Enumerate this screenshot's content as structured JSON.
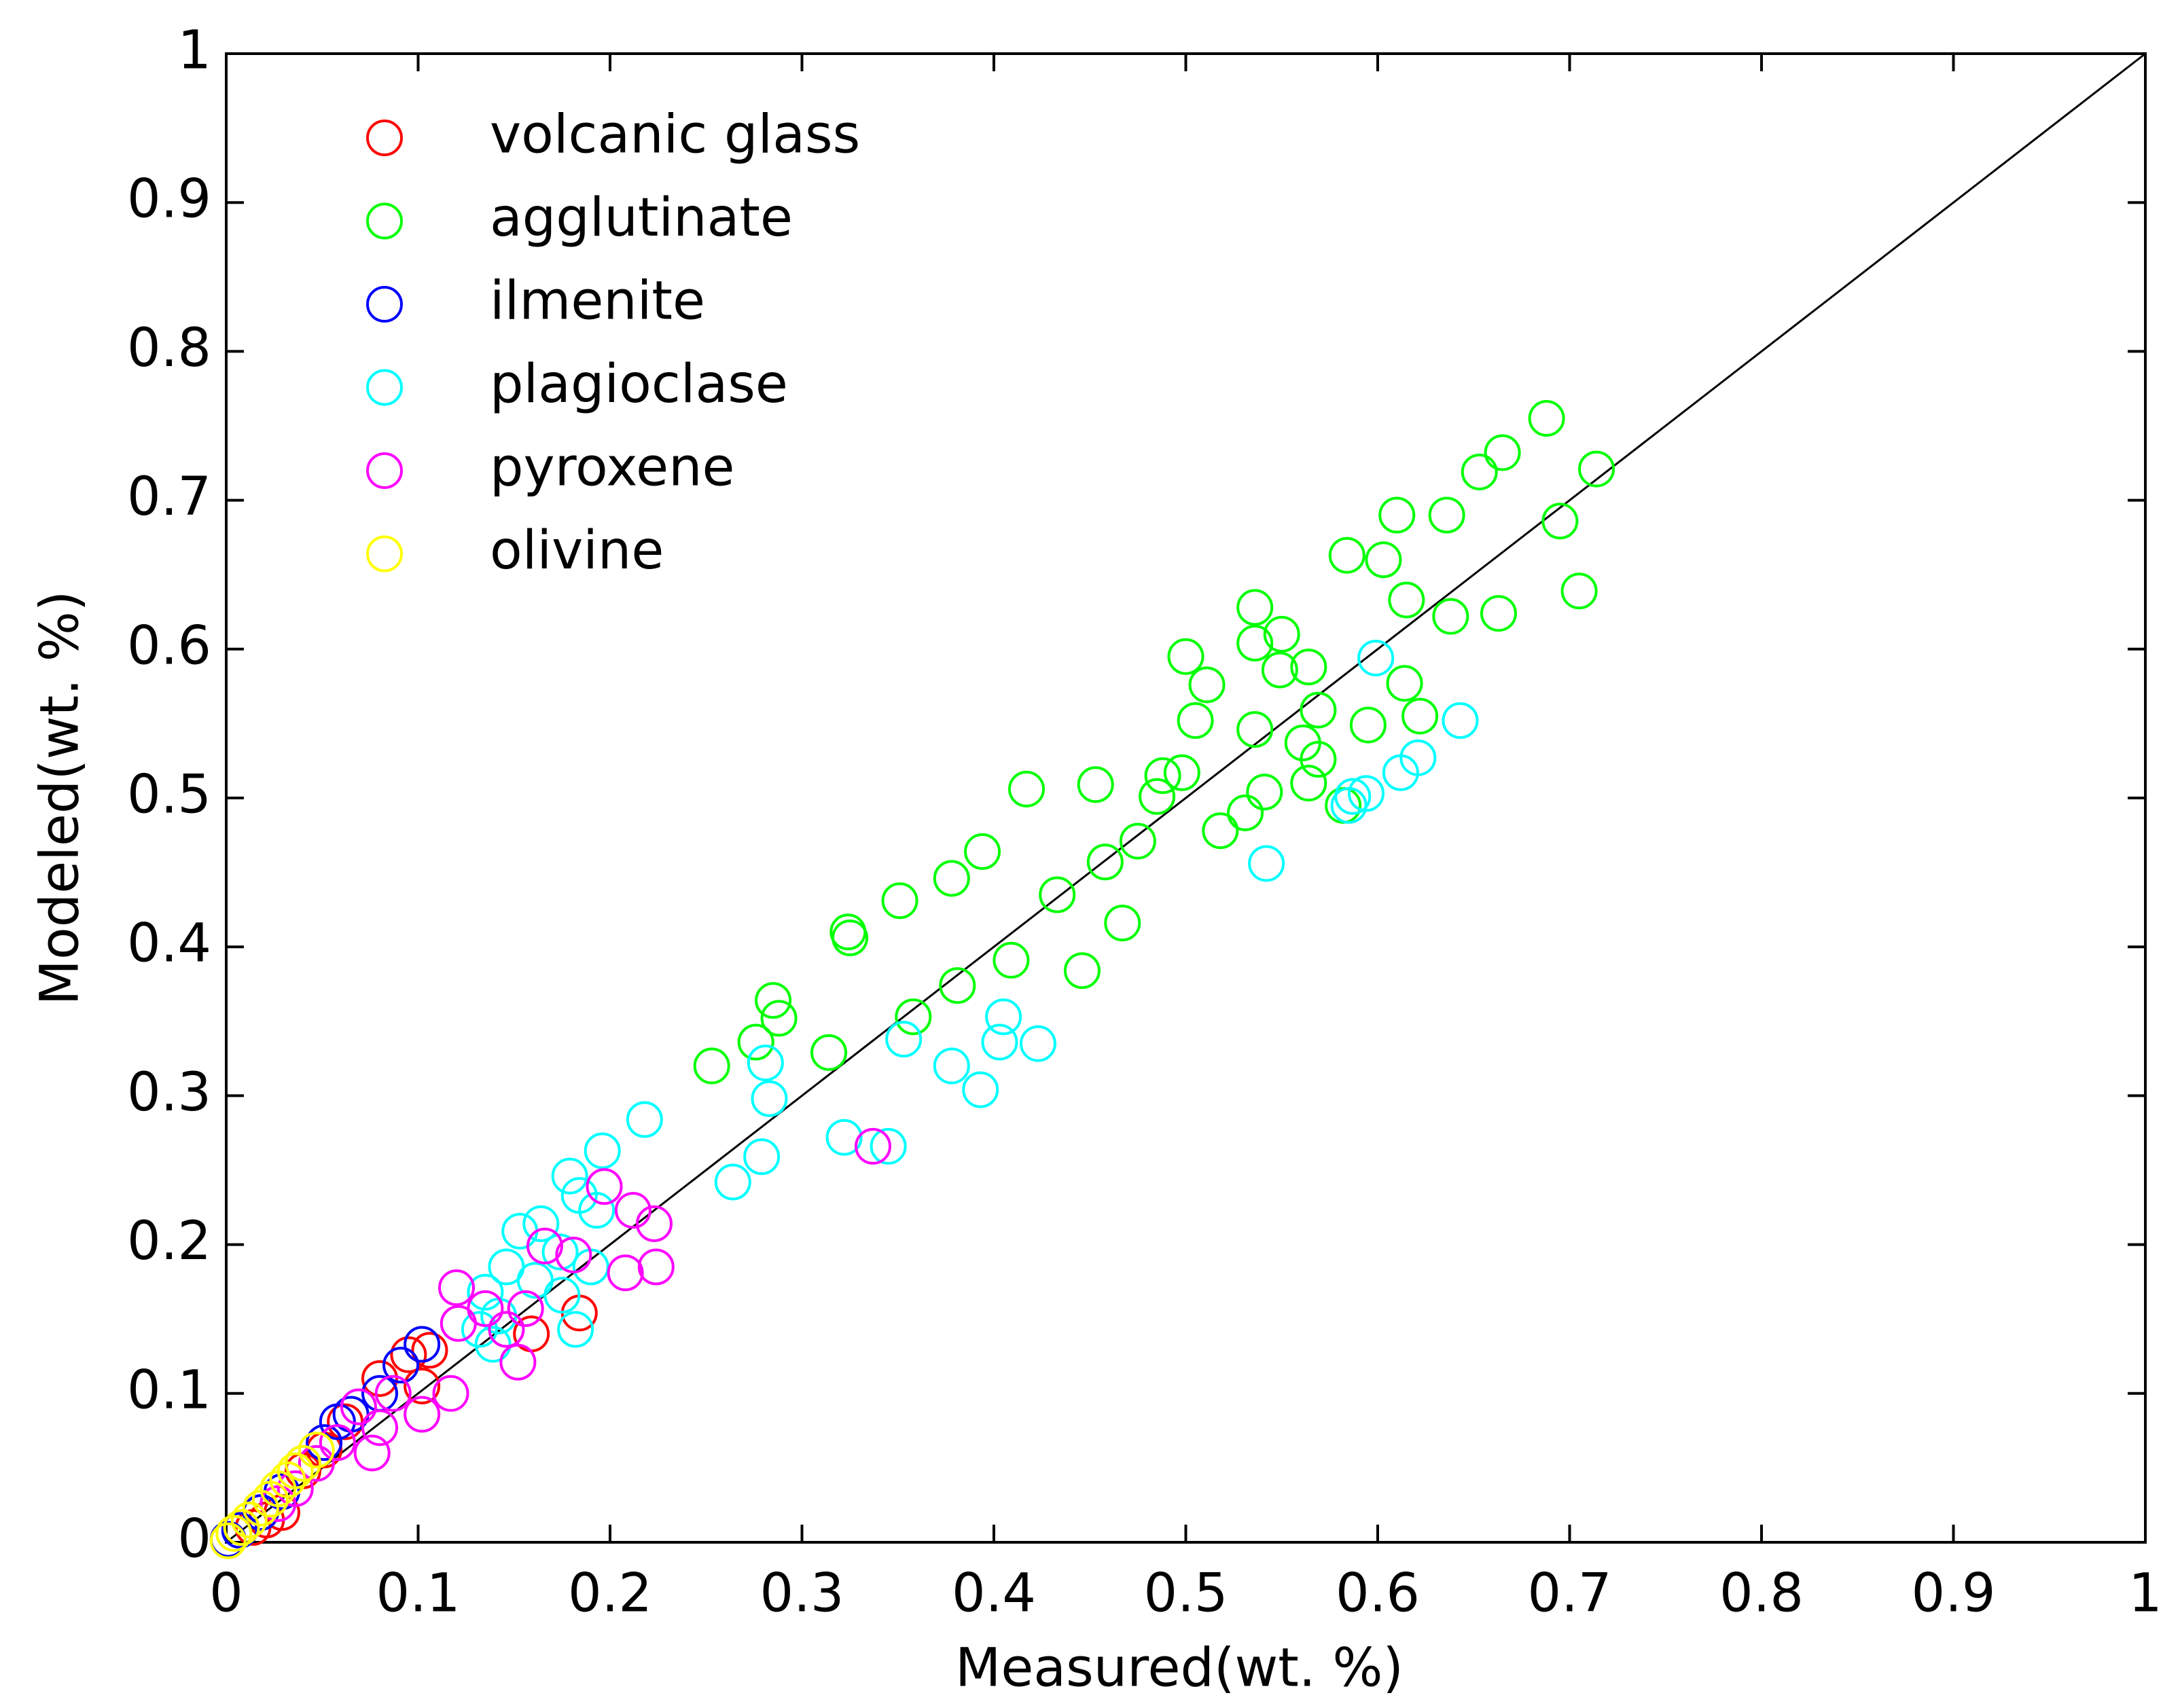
{
  "chart_data": {
    "type": "scatter",
    "x_label": "Measured(wt. %)",
    "y_label": "Modeled(wt. %)",
    "xlim": [
      0,
      1
    ],
    "ylim": [
      0,
      1
    ],
    "xticks": [
      0,
      0.1,
      0.2,
      0.3,
      0.4,
      0.5,
      0.6,
      0.7,
      0.8,
      0.9,
      1
    ],
    "yticks": [
      0,
      0.1,
      0.2,
      0.3,
      0.4,
      0.5,
      0.6,
      0.7,
      0.8,
      0.9,
      1
    ],
    "legend": "upper-left",
    "grid": false,
    "series": [
      {
        "name": "volcanic glass",
        "color": "#ff0000",
        "x": [
          0.184,
          0.159,
          0.095,
          0.106,
          0.102,
          0.08,
          0.062,
          0.051,
          0.04,
          0.029,
          0.021,
          0.014
        ],
        "values": [
          0.154,
          0.14,
          0.126,
          0.129,
          0.105,
          0.11,
          0.081,
          0.062,
          0.048,
          0.02,
          0.015,
          0.01
        ]
      },
      {
        "name": "agglutinate",
        "color": "#00ff00",
        "x": [
          0.714,
          0.688,
          0.665,
          0.653,
          0.695,
          0.705,
          0.61,
          0.636,
          0.584,
          0.603,
          0.615,
          0.638,
          0.663,
          0.536,
          0.536,
          0.55,
          0.564,
          0.549,
          0.5,
          0.511,
          0.505,
          0.536,
          0.569,
          0.614,
          0.622,
          0.595,
          0.561,
          0.569,
          0.564,
          0.541,
          0.498,
          0.488,
          0.485,
          0.518,
          0.531,
          0.582,
          0.453,
          0.417,
          0.475,
          0.458,
          0.394,
          0.378,
          0.433,
          0.467,
          0.351,
          0.324,
          0.325,
          0.409,
          0.446,
          0.381,
          0.358,
          0.285,
          0.288,
          0.276,
          0.314,
          0.253
        ],
        "values": [
          0.721,
          0.755,
          0.732,
          0.719,
          0.686,
          0.639,
          0.69,
          0.69,
          0.663,
          0.66,
          0.633,
          0.622,
          0.624,
          0.628,
          0.604,
          0.61,
          0.588,
          0.586,
          0.595,
          0.576,
          0.552,
          0.546,
          0.559,
          0.577,
          0.555,
          0.549,
          0.537,
          0.526,
          0.51,
          0.504,
          0.517,
          0.515,
          0.501,
          0.478,
          0.49,
          0.495,
          0.509,
          0.506,
          0.471,
          0.457,
          0.464,
          0.446,
          0.435,
          0.416,
          0.431,
          0.41,
          0.406,
          0.391,
          0.384,
          0.374,
          0.353,
          0.364,
          0.352,
          0.336,
          0.329,
          0.32
        ]
      },
      {
        "name": "ilmenite",
        "color": "#0000ff",
        "x": [
          0.102,
          0.091,
          0.08,
          0.065,
          0.058,
          0.051,
          0.04,
          0.029,
          0.018,
          0.007,
          0.001
        ],
        "values": [
          0.133,
          0.119,
          0.1,
          0.086,
          0.081,
          0.067,
          0.053,
          0.034,
          0.02,
          0.008,
          0.002
        ]
      },
      {
        "name": "plagioclase",
        "color": "#00ffff",
        "x": [
          0.599,
          0.643,
          0.621,
          0.612,
          0.594,
          0.587,
          0.585,
          0.542,
          0.405,
          0.403,
          0.423,
          0.353,
          0.378,
          0.393,
          0.281,
          0.283,
          0.322,
          0.345,
          0.279,
          0.264,
          0.218,
          0.196,
          0.179,
          0.184,
          0.193,
          0.164,
          0.153,
          0.174,
          0.19,
          0.146,
          0.161,
          0.175,
          0.135,
          0.142,
          0.182,
          0.132,
          0.139
        ],
        "values": [
          0.594,
          0.552,
          0.527,
          0.517,
          0.503,
          0.501,
          0.495,
          0.456,
          0.353,
          0.336,
          0.335,
          0.338,
          0.32,
          0.304,
          0.322,
          0.298,
          0.272,
          0.266,
          0.259,
          0.242,
          0.284,
          0.263,
          0.246,
          0.233,
          0.223,
          0.214,
          0.209,
          0.195,
          0.185,
          0.185,
          0.176,
          0.166,
          0.168,
          0.152,
          0.143,
          0.143,
          0.133
        ]
      },
      {
        "name": "pyroxene",
        "color": "#ff00ff",
        "x": [
          0.337,
          0.197,
          0.212,
          0.223,
          0.224,
          0.208,
          0.181,
          0.166,
          0.12,
          0.135,
          0.156,
          0.146,
          0.121,
          0.152,
          0.117,
          0.102,
          0.087,
          0.08,
          0.069,
          0.076,
          0.058,
          0.047,
          0.036,
          0.027
        ],
        "values": [
          0.266,
          0.239,
          0.223,
          0.214,
          0.185,
          0.181,
          0.193,
          0.199,
          0.171,
          0.157,
          0.157,
          0.143,
          0.147,
          0.121,
          0.1,
          0.086,
          0.1,
          0.077,
          0.091,
          0.06,
          0.067,
          0.053,
          0.036,
          0.026
        ]
      },
      {
        "name": "olivine",
        "color": "#ffff00",
        "x": [
          0.047,
          0.04,
          0.036,
          0.032,
          0.027,
          0.023,
          0.018,
          0.012,
          0.008,
          0.004,
          0.001
        ],
        "values": [
          0.062,
          0.053,
          0.048,
          0.042,
          0.036,
          0.029,
          0.023,
          0.015,
          0.01,
          0.006,
          0.001
        ]
      }
    ]
  }
}
